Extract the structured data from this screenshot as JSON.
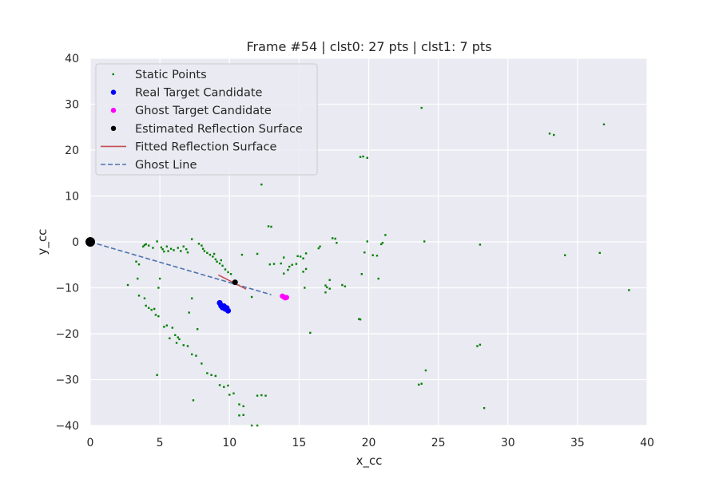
{
  "chart_data": {
    "type": "scatter",
    "title": "Frame #54 | clst0: 27 pts | clst1: 7 pts",
    "xlabel": "x_cc",
    "ylabel": "y_cc",
    "xlim": [
      0,
      40
    ],
    "ylim": [
      -40,
      40
    ],
    "xticks": [
      0,
      5,
      10,
      15,
      20,
      25,
      30,
      35,
      40
    ],
    "yticks": [
      -40,
      -30,
      -20,
      -10,
      0,
      10,
      20,
      30,
      40
    ],
    "grid": true,
    "legend_position": "upper-left",
    "colors": {
      "background": "#eaeaf2",
      "grid": "#ffffff",
      "static": "#008000",
      "real": "#0000ff",
      "ghost": "#ff00ff",
      "estimated": "#000000",
      "fitted": "#c44e52",
      "ghost_line": "#4c72b0"
    },
    "legend": [
      {
        "label": "Static Points",
        "marker": "dot-small",
        "color": "#008000"
      },
      {
        "label": "Real Target Candidate",
        "marker": "dot",
        "color": "#0000ff"
      },
      {
        "label": "Ghost Target Candidate",
        "marker": "dot",
        "color": "#ff00ff"
      },
      {
        "label": "Estimated Reflection Surface",
        "marker": "dot",
        "color": "#000000"
      },
      {
        "label": "Fitted Reflection Surface",
        "marker": "line",
        "color": "#c44e52"
      },
      {
        "label": "Ghost Line",
        "marker": "dashed",
        "color": "#4c72b0"
      }
    ],
    "series": [
      {
        "name": "Static Points",
        "points": [
          [
            3.3,
            -4.3
          ],
          [
            3.5,
            -4.9
          ],
          [
            3.8,
            -1.0
          ],
          [
            3.9,
            -0.7
          ],
          [
            4.0,
            -0.5
          ],
          [
            4.2,
            -0.8
          ],
          [
            4.5,
            -1.3
          ],
          [
            4.8,
            0.1
          ],
          [
            5.1,
            -1.2
          ],
          [
            5.2,
            -1.6
          ],
          [
            5.3,
            -2.1
          ],
          [
            5.5,
            -1.0
          ],
          [
            5.6,
            -2.0
          ],
          [
            5.8,
            -1.5
          ],
          [
            6.0,
            -1.8
          ],
          [
            6.3,
            -1.3
          ],
          [
            6.5,
            -2.0
          ],
          [
            6.7,
            -1.0
          ],
          [
            6.9,
            -1.6
          ],
          [
            7.0,
            -2.3
          ],
          [
            7.3,
            0.6
          ],
          [
            7.8,
            -0.4
          ],
          [
            8.0,
            -0.8
          ],
          [
            8.1,
            -1.5
          ],
          [
            8.2,
            -2.0
          ],
          [
            8.4,
            -2.4
          ],
          [
            8.6,
            -2.8
          ],
          [
            8.8,
            -3.2
          ],
          [
            9.0,
            -3.8
          ],
          [
            9.1,
            -4.3
          ],
          [
            9.3,
            -4.7
          ],
          [
            9.5,
            -5.2
          ],
          [
            9.7,
            -6.0
          ],
          [
            9.9,
            -6.6
          ],
          [
            10.1,
            -7.0
          ],
          [
            9.4,
            -4.0
          ],
          [
            8.9,
            -2.6
          ],
          [
            3.4,
            -8.0
          ],
          [
            3.5,
            -11.7
          ],
          [
            3.9,
            -12.3
          ],
          [
            4.0,
            -13.9
          ],
          [
            4.2,
            -14.4
          ],
          [
            4.4,
            -14.8
          ],
          [
            4.6,
            -14.6
          ],
          [
            4.7,
            -15.9
          ],
          [
            4.9,
            -16.2
          ],
          [
            4.9,
            -10.0
          ],
          [
            5.0,
            -8.0
          ],
          [
            5.3,
            -18.5
          ],
          [
            5.5,
            -18.2
          ],
          [
            5.7,
            -21.0
          ],
          [
            5.9,
            -18.7
          ],
          [
            6.1,
            -20.3
          ],
          [
            6.3,
            -20.8
          ],
          [
            6.4,
            -21.2
          ],
          [
            6.2,
            -22.0
          ],
          [
            6.7,
            -22.5
          ],
          [
            7.0,
            -22.7
          ],
          [
            7.1,
            -15.4
          ],
          [
            7.3,
            -12.3
          ],
          [
            7.3,
            -24.5
          ],
          [
            7.6,
            -24.8
          ],
          [
            7.7,
            -19.0
          ],
          [
            8.0,
            -26.5
          ],
          [
            8.4,
            -28.6
          ],
          [
            8.7,
            -29.0
          ],
          [
            9.0,
            -29.2
          ],
          [
            9.3,
            -31.2
          ],
          [
            9.6,
            -31.6
          ],
          [
            9.9,
            -31.3
          ],
          [
            10.0,
            -33.3
          ],
          [
            10.3,
            -33.0
          ],
          [
            10.7,
            -35.4
          ],
          [
            11.0,
            -35.8
          ],
          [
            10.7,
            -37.8
          ],
          [
            11.0,
            -37.7
          ],
          [
            11.6,
            -40.0
          ],
          [
            12.0,
            -40.0
          ],
          [
            12.0,
            -33.5
          ],
          [
            12.3,
            -33.4
          ],
          [
            12.6,
            -33.5
          ],
          [
            7.4,
            -34.5
          ],
          [
            4.8,
            -29.0
          ],
          [
            2.7,
            -9.4
          ],
          [
            10.9,
            -2.8
          ],
          [
            11.6,
            -12.0
          ],
          [
            12.0,
            -2.6
          ],
          [
            12.3,
            12.5
          ],
          [
            12.8,
            3.4
          ],
          [
            13.0,
            3.3
          ],
          [
            12.9,
            -4.9
          ],
          [
            13.2,
            -4.8
          ],
          [
            13.7,
            -4.7
          ],
          [
            13.9,
            -3.4
          ],
          [
            13.9,
            -6.9
          ],
          [
            14.2,
            -6.1
          ],
          [
            14.3,
            -5.4
          ],
          [
            14.5,
            -5.0
          ],
          [
            14.8,
            -4.8
          ],
          [
            14.9,
            -3.1
          ],
          [
            15.1,
            -3.2
          ],
          [
            15.3,
            -3.6
          ],
          [
            15.3,
            -6.5
          ],
          [
            15.5,
            -5.9
          ],
          [
            15.5,
            -2.5
          ],
          [
            15.4,
            -10.0
          ],
          [
            15.8,
            -19.8
          ],
          [
            16.4,
            -1.4
          ],
          [
            16.5,
            -1.0
          ],
          [
            16.9,
            -9.5
          ],
          [
            16.9,
            -11.0
          ],
          [
            17.0,
            -9.9
          ],
          [
            17.2,
            -8.3
          ],
          [
            17.2,
            -10.2
          ],
          [
            17.4,
            0.8
          ],
          [
            17.6,
            0.7
          ],
          [
            17.7,
            -0.2
          ],
          [
            18.1,
            -9.4
          ],
          [
            18.3,
            -9.7
          ],
          [
            19.3,
            -16.8
          ],
          [
            19.4,
            -16.9
          ],
          [
            19.5,
            -7.0
          ],
          [
            19.4,
            18.5
          ],
          [
            19.6,
            18.6
          ],
          [
            19.7,
            -2.3
          ],
          [
            19.9,
            0.1
          ],
          [
            19.9,
            18.3
          ],
          [
            20.3,
            -2.9
          ],
          [
            20.6,
            -3.0
          ],
          [
            20.7,
            -8.0
          ],
          [
            20.9,
            -0.5
          ],
          [
            21.0,
            -0.2
          ],
          [
            21.2,
            1.5
          ],
          [
            23.6,
            -31.1
          ],
          [
            23.8,
            -30.9
          ],
          [
            23.8,
            29.2
          ],
          [
            24.0,
            0.1
          ],
          [
            24.1,
            -28.0
          ],
          [
            27.8,
            -22.7
          ],
          [
            28.0,
            -22.4
          ],
          [
            28.0,
            -0.6
          ],
          [
            28.3,
            -36.2
          ],
          [
            33.0,
            23.6
          ],
          [
            33.3,
            23.3
          ],
          [
            34.1,
            -2.9
          ],
          [
            36.6,
            -2.4
          ],
          [
            36.9,
            25.6
          ],
          [
            38.7,
            -10.5
          ]
        ]
      },
      {
        "name": "Real Target Candidate",
        "points": [
          [
            9.3,
            -13.3
          ],
          [
            9.4,
            -13.9
          ],
          [
            9.5,
            -14.3
          ],
          [
            9.6,
            -14.0
          ],
          [
            9.7,
            -14.6
          ],
          [
            9.8,
            -14.4
          ],
          [
            9.9,
            -15.0
          ]
        ]
      },
      {
        "name": "Ghost Target Candidate",
        "points": [
          [
            13.8,
            -11.8
          ],
          [
            13.9,
            -12.0
          ],
          [
            14.0,
            -12.2
          ],
          [
            14.1,
            -12.1
          ]
        ]
      },
      {
        "name": "Estimated Reflection Surface",
        "points": [
          [
            0.0,
            0.0
          ],
          [
            10.4,
            -8.8
          ]
        ]
      },
      {
        "name": "Fitted Reflection Surface",
        "line": [
          [
            9.2,
            -7.2
          ],
          [
            11.2,
            -10.3
          ]
        ]
      },
      {
        "name": "Ghost Line",
        "line": [
          [
            0.0,
            0.0
          ],
          [
            13.0,
            -11.5
          ]
        ]
      }
    ]
  }
}
